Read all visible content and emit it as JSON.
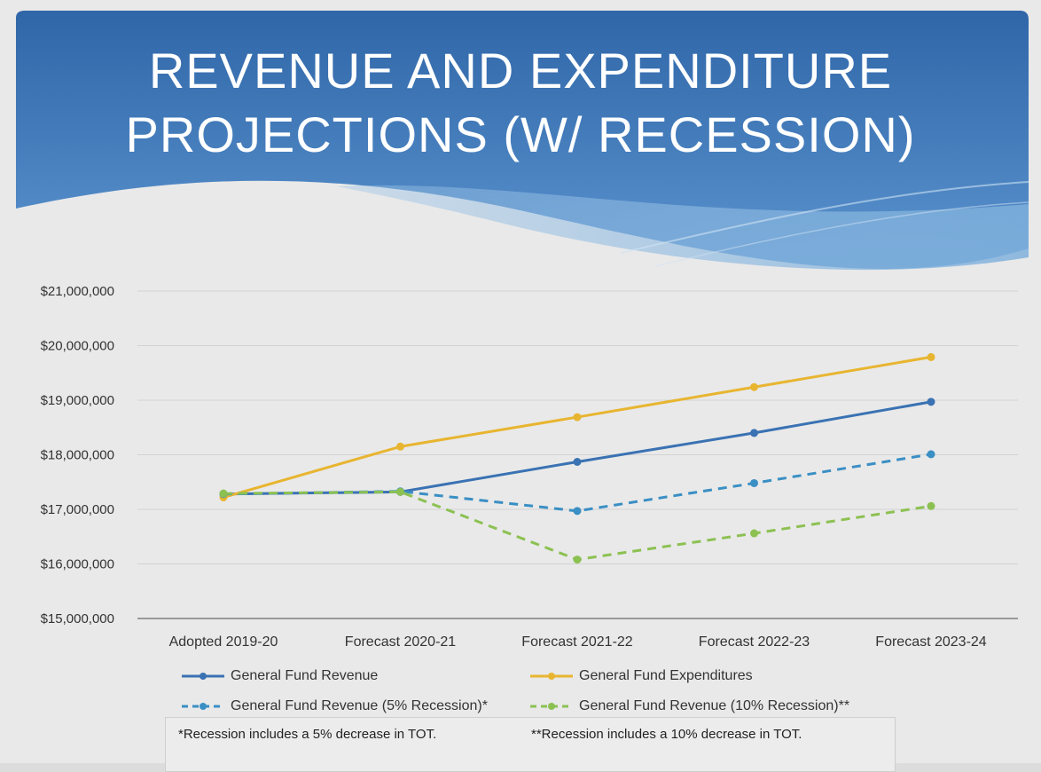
{
  "slide": {
    "title_line1": "REVENUE AND EXPENDITURE",
    "title_line2": "PROJECTIONS (W/ RECESSION)",
    "footnotes": [
      "*Recession includes a 5% decrease in TOT.",
      "**Recession includes a 10% decrease in TOT."
    ],
    "colors": {
      "banner_dark": "#3a6fb0",
      "banner_light": "#6fa3d3",
      "background": "#e9e9e9"
    }
  },
  "chart_data": {
    "type": "line",
    "title": "",
    "xlabel": "",
    "ylabel": "",
    "categories": [
      "Adopted 2019-20",
      "Forecast 2020-21",
      "Forecast 2021-22",
      "Forecast 2022-23",
      "Forecast 2023-24"
    ],
    "ylim": [
      15000000,
      21000000
    ],
    "yticks": [
      15000000,
      16000000,
      17000000,
      18000000,
      19000000,
      20000000,
      21000000
    ],
    "ytick_labels": [
      "$15,000,000",
      "$16,000,000",
      "$17,000,000",
      "$18,000,000",
      "$19,000,000",
      "$20,000,000",
      "$21,000,000"
    ],
    "grid": true,
    "legend_position": "bottom",
    "series": [
      {
        "name": "General Fund Revenue",
        "color": "#3a72b3",
        "dashed": false,
        "values": [
          17280000,
          17320000,
          17870000,
          18400000,
          18970000
        ]
      },
      {
        "name": "General Fund Expenditures",
        "color": "#e8b530",
        "dashed": false,
        "values": [
          17220000,
          18150000,
          18690000,
          19240000,
          19790000
        ]
      },
      {
        "name": "General Fund Revenue (5% Recession)*",
        "color": "#3a8fc4",
        "dashed": true,
        "values": [
          17280000,
          17330000,
          16970000,
          17480000,
          18010000
        ]
      },
      {
        "name": "General Fund Revenue (10% Recession)**",
        "color": "#8cc152",
        "dashed": true,
        "values": [
          17290000,
          17320000,
          16080000,
          16560000,
          17060000
        ]
      }
    ]
  }
}
